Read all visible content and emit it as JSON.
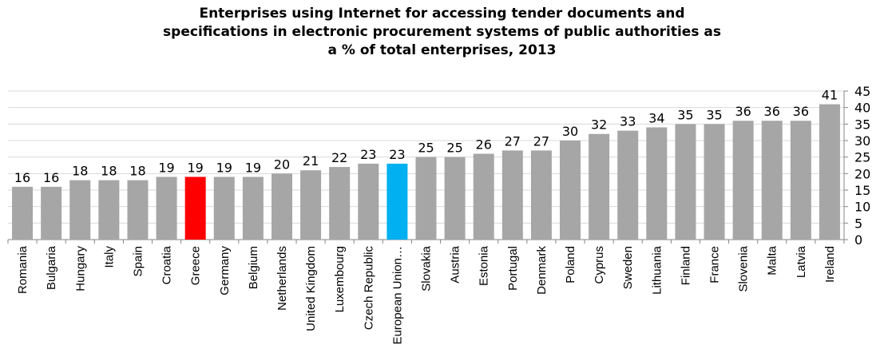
{
  "chart_data": {
    "type": "bar",
    "title_lines": [
      "Enterprises using Internet for accessing tender documents and",
      "specifications in electronic procurement systems of public authorities as",
      "a % of total enterprises, 2013"
    ],
    "categories": [
      "Romania",
      "Bulgaria",
      "Hungary",
      "Italy",
      "Spain",
      "Croatia",
      "Greece",
      "Germany",
      "Belgium",
      "Netherlands",
      "United Kingdom",
      "Luxembourg",
      "Czech Republic",
      "European Union…",
      "Slovakia",
      "Austria",
      "Estonia",
      "Portugal",
      "Denmark",
      "Poland",
      "Cyprus",
      "Sweden",
      "Lithuania",
      "Finland",
      "France",
      "Slovenia",
      "Malta",
      "Latvia",
      "Ireland"
    ],
    "values": [
      16,
      16,
      18,
      18,
      18,
      19,
      19,
      19,
      19,
      20,
      21,
      22,
      23,
      23,
      25,
      25,
      26,
      27,
      27,
      30,
      32,
      33,
      34,
      35,
      35,
      36,
      36,
      36,
      41
    ],
    "highlight": {
      "Greece": "#ff0000",
      "European Union…": "#00b0f0"
    },
    "bar_color": "#a6a6a6",
    "ylim": [
      0,
      45
    ],
    "yticks": [
      0,
      5,
      10,
      15,
      20,
      25,
      30,
      35,
      40,
      45
    ],
    "y_axis_side": "right",
    "grid": true,
    "xlabel": "",
    "ylabel": ""
  }
}
